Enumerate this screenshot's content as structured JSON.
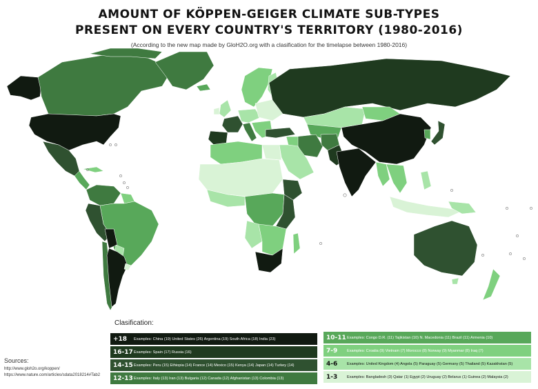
{
  "title_line1": "AMOUNT OF KÖPPEN-GEIGER CLIMATE SUB-TYPES",
  "title_line2": "PRESENT ON EVERY COUNTRY'S TERRITORY (1980-2016)",
  "subtitle": "(According to the new map made by GloH2O.org with a clasification for the timelapse between 1980-2016)",
  "clasification_label": "Clasification:",
  "colors": {
    "c18": "#111a11",
    "c16": "#1f3a1f",
    "c14": "#2f5130",
    "c12": "#3f7a40",
    "c10": "#58a85a",
    "c7": "#7fd07f",
    "c4": "#a8e4a8",
    "c1": "#d9f3d6",
    "ocean": "#ffffff"
  },
  "legend_left": [
    {
      "range": "+18",
      "examples": "Examples: China (19)   United States (26)   Argentina (19)   South Africa (18)   India (23)"
    },
    {
      "range": "16-17",
      "examples": "Examples: Spain (17)   Russia (16)"
    },
    {
      "range": "14-15",
      "examples": "Examples: Peru (15)   Ethiopia (14)   France (14)   Mexico (15)   Kenya (14)   Japan (14)   Turkey (14)"
    },
    {
      "range": "12-13",
      "examples": "Examples: Italy (13)   Iran (13)   Bulgaria (12)   Canada (12)   Afghanistan (13)   Colombia (13)"
    }
  ],
  "legend_right": [
    {
      "range": "10-11",
      "examples": "Examples: Congo D.R. (11)   Tajikistan (10)   N. Macedonia (11)   Brazil (11)   Armenia (10)"
    },
    {
      "range": "7-9",
      "examples": "Examples: Croatia (9)   Vietnam (7)   Morocco (8)   Norway (9)   Myanmar (8)   Iraq (7)"
    },
    {
      "range": "4-6",
      "examples": "Examples: United Kingdom (4)   Angola (5)   Paraguay (5)   Germany (5)   Thailand (5)   Kazakhstan (5)"
    },
    {
      "range": "1-3",
      "examples": "Examples: Bangladesh (3)   Qatar (1)   Egypt (2)   Uruguay (2)   Belarus (1)   Guinea (2)   Malaysia (2)"
    }
  ],
  "sources_label": "Sources:",
  "source_urls": [
    "http://www.gloh2o.org/koppen/",
    "https://www.nature.com/articles/sdata2018214#Tab2"
  ]
}
